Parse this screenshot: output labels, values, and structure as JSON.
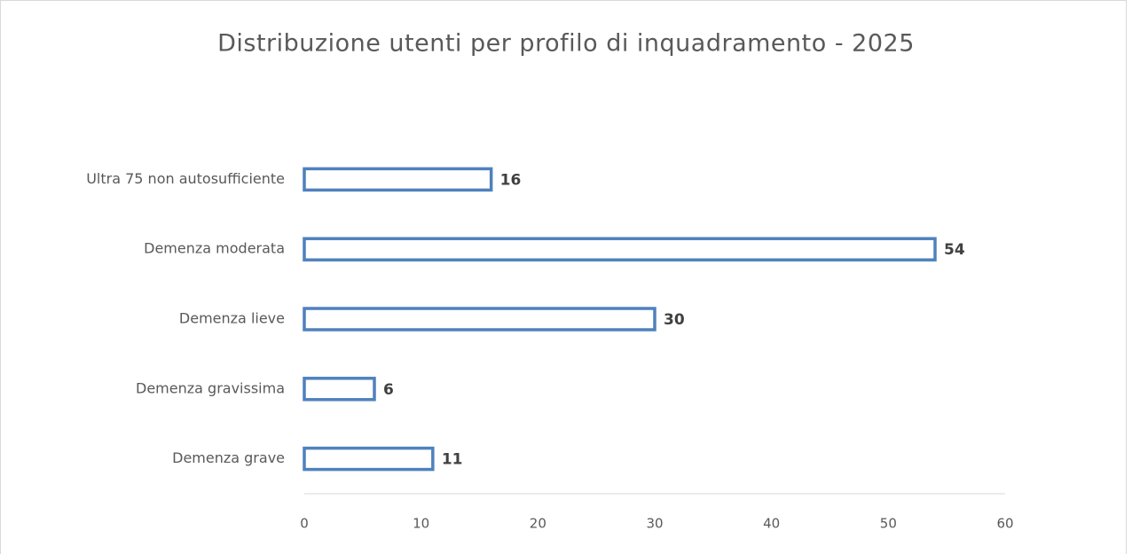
{
  "chart_data": {
    "type": "bar",
    "orientation": "horizontal",
    "title": "Distribuzione utenti per profilo di inquadramento - 2025",
    "categories": [
      "Ultra 75 non autosufficiente",
      "Demenza moderata",
      "Demenza lieve",
      "Demenza gravissima",
      "Demenza grave"
    ],
    "values": [
      16,
      54,
      30,
      6,
      11
    ],
    "color": "#4f81bd",
    "xlim": [
      0,
      60
    ],
    "xticks": [
      0,
      10,
      20,
      30,
      40,
      50,
      60
    ],
    "grid": false
  }
}
